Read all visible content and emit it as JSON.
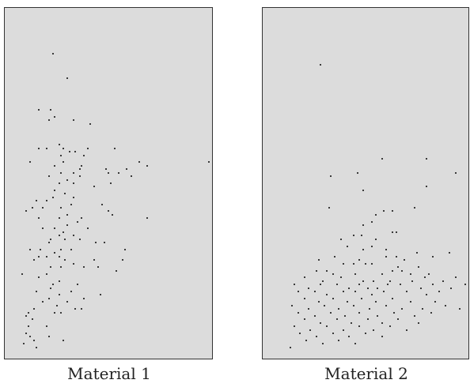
{
  "figure": {
    "colors": {
      "panel_bg": "#dcdcdc",
      "border": "#333333",
      "dot": "#3a3a3a",
      "text": "#222222"
    },
    "panels": [
      {
        "caption": "Material 1",
        "points": [
          [
            0.23,
            0.13
          ],
          [
            0.3,
            0.2
          ],
          [
            0.16,
            0.29
          ],
          [
            0.22,
            0.29
          ],
          [
            0.24,
            0.31
          ],
          [
            0.21,
            0.32
          ],
          [
            0.33,
            0.32
          ],
          [
            0.41,
            0.33
          ],
          [
            0.16,
            0.4
          ],
          [
            0.2,
            0.4
          ],
          [
            0.26,
            0.39
          ],
          [
            0.28,
            0.4
          ],
          [
            0.27,
            0.42
          ],
          [
            0.31,
            0.41
          ],
          [
            0.34,
            0.41
          ],
          [
            0.4,
            0.4
          ],
          [
            0.53,
            0.4
          ],
          [
            0.38,
            0.42
          ],
          [
            0.28,
            0.44
          ],
          [
            0.24,
            0.45
          ],
          [
            0.37,
            0.45
          ],
          [
            0.12,
            0.44
          ],
          [
            0.36,
            0.46
          ],
          [
            0.49,
            0.46
          ],
          [
            0.59,
            0.46
          ],
          [
            0.65,
            0.44
          ],
          [
            0.69,
            0.45
          ],
          [
            0.99,
            0.44
          ],
          [
            0.33,
            0.47
          ],
          [
            0.21,
            0.48
          ],
          [
            0.27,
            0.47
          ],
          [
            0.5,
            0.47
          ],
          [
            0.55,
            0.47
          ],
          [
            0.61,
            0.48
          ],
          [
            0.3,
            0.49
          ],
          [
            0.36,
            0.48
          ],
          [
            0.26,
            0.5
          ],
          [
            0.33,
            0.5
          ],
          [
            0.43,
            0.51
          ],
          [
            0.51,
            0.5
          ],
          [
            0.24,
            0.52
          ],
          [
            0.29,
            0.53
          ],
          [
            0.23,
            0.54
          ],
          [
            0.2,
            0.55
          ],
          [
            0.33,
            0.54
          ],
          [
            0.15,
            0.55
          ],
          [
            0.13,
            0.57
          ],
          [
            0.18,
            0.57
          ],
          [
            0.32,
            0.56
          ],
          [
            0.47,
            0.56
          ],
          [
            0.1,
            0.58
          ],
          [
            0.27,
            0.57
          ],
          [
            0.5,
            0.58
          ],
          [
            0.3,
            0.59
          ],
          [
            0.16,
            0.6
          ],
          [
            0.26,
            0.6
          ],
          [
            0.37,
            0.6
          ],
          [
            0.52,
            0.59
          ],
          [
            0.35,
            0.61
          ],
          [
            0.69,
            0.6
          ],
          [
            0.3,
            0.62
          ],
          [
            0.24,
            0.63
          ],
          [
            0.18,
            0.63
          ],
          [
            0.4,
            0.63
          ],
          [
            0.28,
            0.64
          ],
          [
            0.26,
            0.65
          ],
          [
            0.22,
            0.66
          ],
          [
            0.33,
            0.65
          ],
          [
            0.29,
            0.66
          ],
          [
            0.36,
            0.66
          ],
          [
            0.21,
            0.67
          ],
          [
            0.44,
            0.67
          ],
          [
            0.48,
            0.67
          ],
          [
            0.12,
            0.69
          ],
          [
            0.17,
            0.69
          ],
          [
            0.27,
            0.69
          ],
          [
            0.32,
            0.69
          ],
          [
            0.24,
            0.7
          ],
          [
            0.58,
            0.69
          ],
          [
            0.16,
            0.71
          ],
          [
            0.2,
            0.71
          ],
          [
            0.26,
            0.71
          ],
          [
            0.29,
            0.72
          ],
          [
            0.14,
            0.72
          ],
          [
            0.33,
            0.73
          ],
          [
            0.43,
            0.72
          ],
          [
            0.57,
            0.72
          ],
          [
            0.22,
            0.74
          ],
          [
            0.27,
            0.74
          ],
          [
            0.38,
            0.74
          ],
          [
            0.45,
            0.74
          ],
          [
            0.54,
            0.75
          ],
          [
            0.2,
            0.76
          ],
          [
            0.08,
            0.76
          ],
          [
            0.16,
            0.77
          ],
          [
            0.26,
            0.78
          ],
          [
            0.23,
            0.79
          ],
          [
            0.22,
            0.8
          ],
          [
            0.35,
            0.79
          ],
          [
            0.15,
            0.81
          ],
          [
            0.32,
            0.81
          ],
          [
            0.26,
            0.82
          ],
          [
            0.21,
            0.83
          ],
          [
            0.38,
            0.83
          ],
          [
            0.3,
            0.84
          ],
          [
            0.46,
            0.82
          ],
          [
            0.18,
            0.84
          ],
          [
            0.25,
            0.85
          ],
          [
            0.34,
            0.86
          ],
          [
            0.14,
            0.86
          ],
          [
            0.37,
            0.86
          ],
          [
            0.11,
            0.87
          ],
          [
            0.24,
            0.87
          ],
          [
            0.27,
            0.87
          ],
          [
            0.1,
            0.88
          ],
          [
            0.13,
            0.89
          ],
          [
            0.2,
            0.91
          ],
          [
            0.11,
            0.91
          ],
          [
            0.1,
            0.93
          ],
          [
            0.12,
            0.94
          ],
          [
            0.21,
            0.94
          ],
          [
            0.14,
            0.95
          ],
          [
            0.28,
            0.95
          ],
          [
            0.09,
            0.96
          ],
          [
            0.15,
            0.97
          ]
        ]
      },
      {
        "caption": "Material 2",
        "points": [
          [
            0.28,
            0.16
          ],
          [
            0.58,
            0.43
          ],
          [
            0.8,
            0.43
          ],
          [
            0.46,
            0.47
          ],
          [
            0.94,
            0.47
          ],
          [
            0.33,
            0.48
          ],
          [
            0.8,
            0.51
          ],
          [
            0.49,
            0.52
          ],
          [
            0.32,
            0.57
          ],
          [
            0.59,
            0.58
          ],
          [
            0.63,
            0.58
          ],
          [
            0.55,
            0.59
          ],
          [
            0.74,
            0.57
          ],
          [
            0.53,
            0.61
          ],
          [
            0.49,
            0.62
          ],
          [
            0.63,
            0.64
          ],
          [
            0.44,
            0.65
          ],
          [
            0.48,
            0.65
          ],
          [
            0.65,
            0.64
          ],
          [
            0.38,
            0.66
          ],
          [
            0.55,
            0.66
          ],
          [
            0.41,
            0.68
          ],
          [
            0.49,
            0.69
          ],
          [
            0.53,
            0.68
          ],
          [
            0.6,
            0.69
          ],
          [
            0.75,
            0.7
          ],
          [
            0.91,
            0.7
          ],
          [
            0.35,
            0.71
          ],
          [
            0.6,
            0.71
          ],
          [
            0.65,
            0.71
          ],
          [
            0.83,
            0.71
          ],
          [
            0.27,
            0.72
          ],
          [
            0.47,
            0.72
          ],
          [
            0.69,
            0.72
          ],
          [
            0.39,
            0.73
          ],
          [
            0.44,
            0.73
          ],
          [
            0.5,
            0.73
          ],
          [
            0.53,
            0.73
          ],
          [
            0.66,
            0.74
          ],
          [
            0.76,
            0.74
          ],
          [
            0.26,
            0.75
          ],
          [
            0.31,
            0.75
          ],
          [
            0.34,
            0.76
          ],
          [
            0.45,
            0.76
          ],
          [
            0.58,
            0.76
          ],
          [
            0.63,
            0.75
          ],
          [
            0.68,
            0.75
          ],
          [
            0.72,
            0.76
          ],
          [
            0.81,
            0.76
          ],
          [
            0.2,
            0.77
          ],
          [
            0.29,
            0.78
          ],
          [
            0.38,
            0.77
          ],
          [
            0.49,
            0.78
          ],
          [
            0.54,
            0.78
          ],
          [
            0.62,
            0.78
          ],
          [
            0.73,
            0.78
          ],
          [
            0.79,
            0.77
          ],
          [
            0.88,
            0.78
          ],
          [
            0.94,
            0.77
          ],
          [
            0.99,
            0.79
          ],
          [
            0.15,
            0.79
          ],
          [
            0.22,
            0.8
          ],
          [
            0.28,
            0.79
          ],
          [
            0.36,
            0.79
          ],
          [
            0.42,
            0.8
          ],
          [
            0.47,
            0.79
          ],
          [
            0.51,
            0.8
          ],
          [
            0.56,
            0.8
          ],
          [
            0.61,
            0.79
          ],
          [
            0.67,
            0.79
          ],
          [
            0.77,
            0.8
          ],
          [
            0.83,
            0.79
          ],
          [
            0.92,
            0.8
          ],
          [
            0.17,
            0.81
          ],
          [
            0.25,
            0.81
          ],
          [
            0.31,
            0.82
          ],
          [
            0.39,
            0.81
          ],
          [
            0.45,
            0.81
          ],
          [
            0.53,
            0.82
          ],
          [
            0.59,
            0.81
          ],
          [
            0.7,
            0.81
          ],
          [
            0.8,
            0.82
          ],
          [
            0.86,
            0.81
          ],
          [
            0.2,
            0.83
          ],
          [
            0.27,
            0.84
          ],
          [
            0.34,
            0.83
          ],
          [
            0.41,
            0.84
          ],
          [
            0.48,
            0.83
          ],
          [
            0.55,
            0.84
          ],
          [
            0.63,
            0.83
          ],
          [
            0.72,
            0.84
          ],
          [
            0.84,
            0.84
          ],
          [
            0.14,
            0.85
          ],
          [
            0.22,
            0.86
          ],
          [
            0.3,
            0.85
          ],
          [
            0.37,
            0.86
          ],
          [
            0.44,
            0.85
          ],
          [
            0.52,
            0.86
          ],
          [
            0.6,
            0.85
          ],
          [
            0.68,
            0.86
          ],
          [
            0.78,
            0.86
          ],
          [
            0.89,
            0.85
          ],
          [
            0.96,
            0.86
          ],
          [
            0.17,
            0.87
          ],
          [
            0.25,
            0.88
          ],
          [
            0.33,
            0.87
          ],
          [
            0.4,
            0.88
          ],
          [
            0.47,
            0.87
          ],
          [
            0.56,
            0.88
          ],
          [
            0.64,
            0.87
          ],
          [
            0.74,
            0.88
          ],
          [
            0.82,
            0.87
          ],
          [
            0.2,
            0.89
          ],
          [
            0.28,
            0.9
          ],
          [
            0.36,
            0.89
          ],
          [
            0.43,
            0.9
          ],
          [
            0.51,
            0.89
          ],
          [
            0.58,
            0.9
          ],
          [
            0.66,
            0.89
          ],
          [
            0.76,
            0.9
          ],
          [
            0.15,
            0.91
          ],
          [
            0.23,
            0.92
          ],
          [
            0.31,
            0.91
          ],
          [
            0.39,
            0.92
          ],
          [
            0.47,
            0.91
          ],
          [
            0.54,
            0.92
          ],
          [
            0.62,
            0.91
          ],
          [
            0.7,
            0.92
          ],
          [
            0.18,
            0.93
          ],
          [
            0.26,
            0.94
          ],
          [
            0.34,
            0.93
          ],
          [
            0.42,
            0.94
          ],
          [
            0.5,
            0.93
          ],
          [
            0.58,
            0.94
          ],
          [
            0.21,
            0.95
          ],
          [
            0.29,
            0.96
          ],
          [
            0.37,
            0.95
          ],
          [
            0.45,
            0.96
          ],
          [
            0.13,
            0.97
          ]
        ]
      }
    ]
  }
}
